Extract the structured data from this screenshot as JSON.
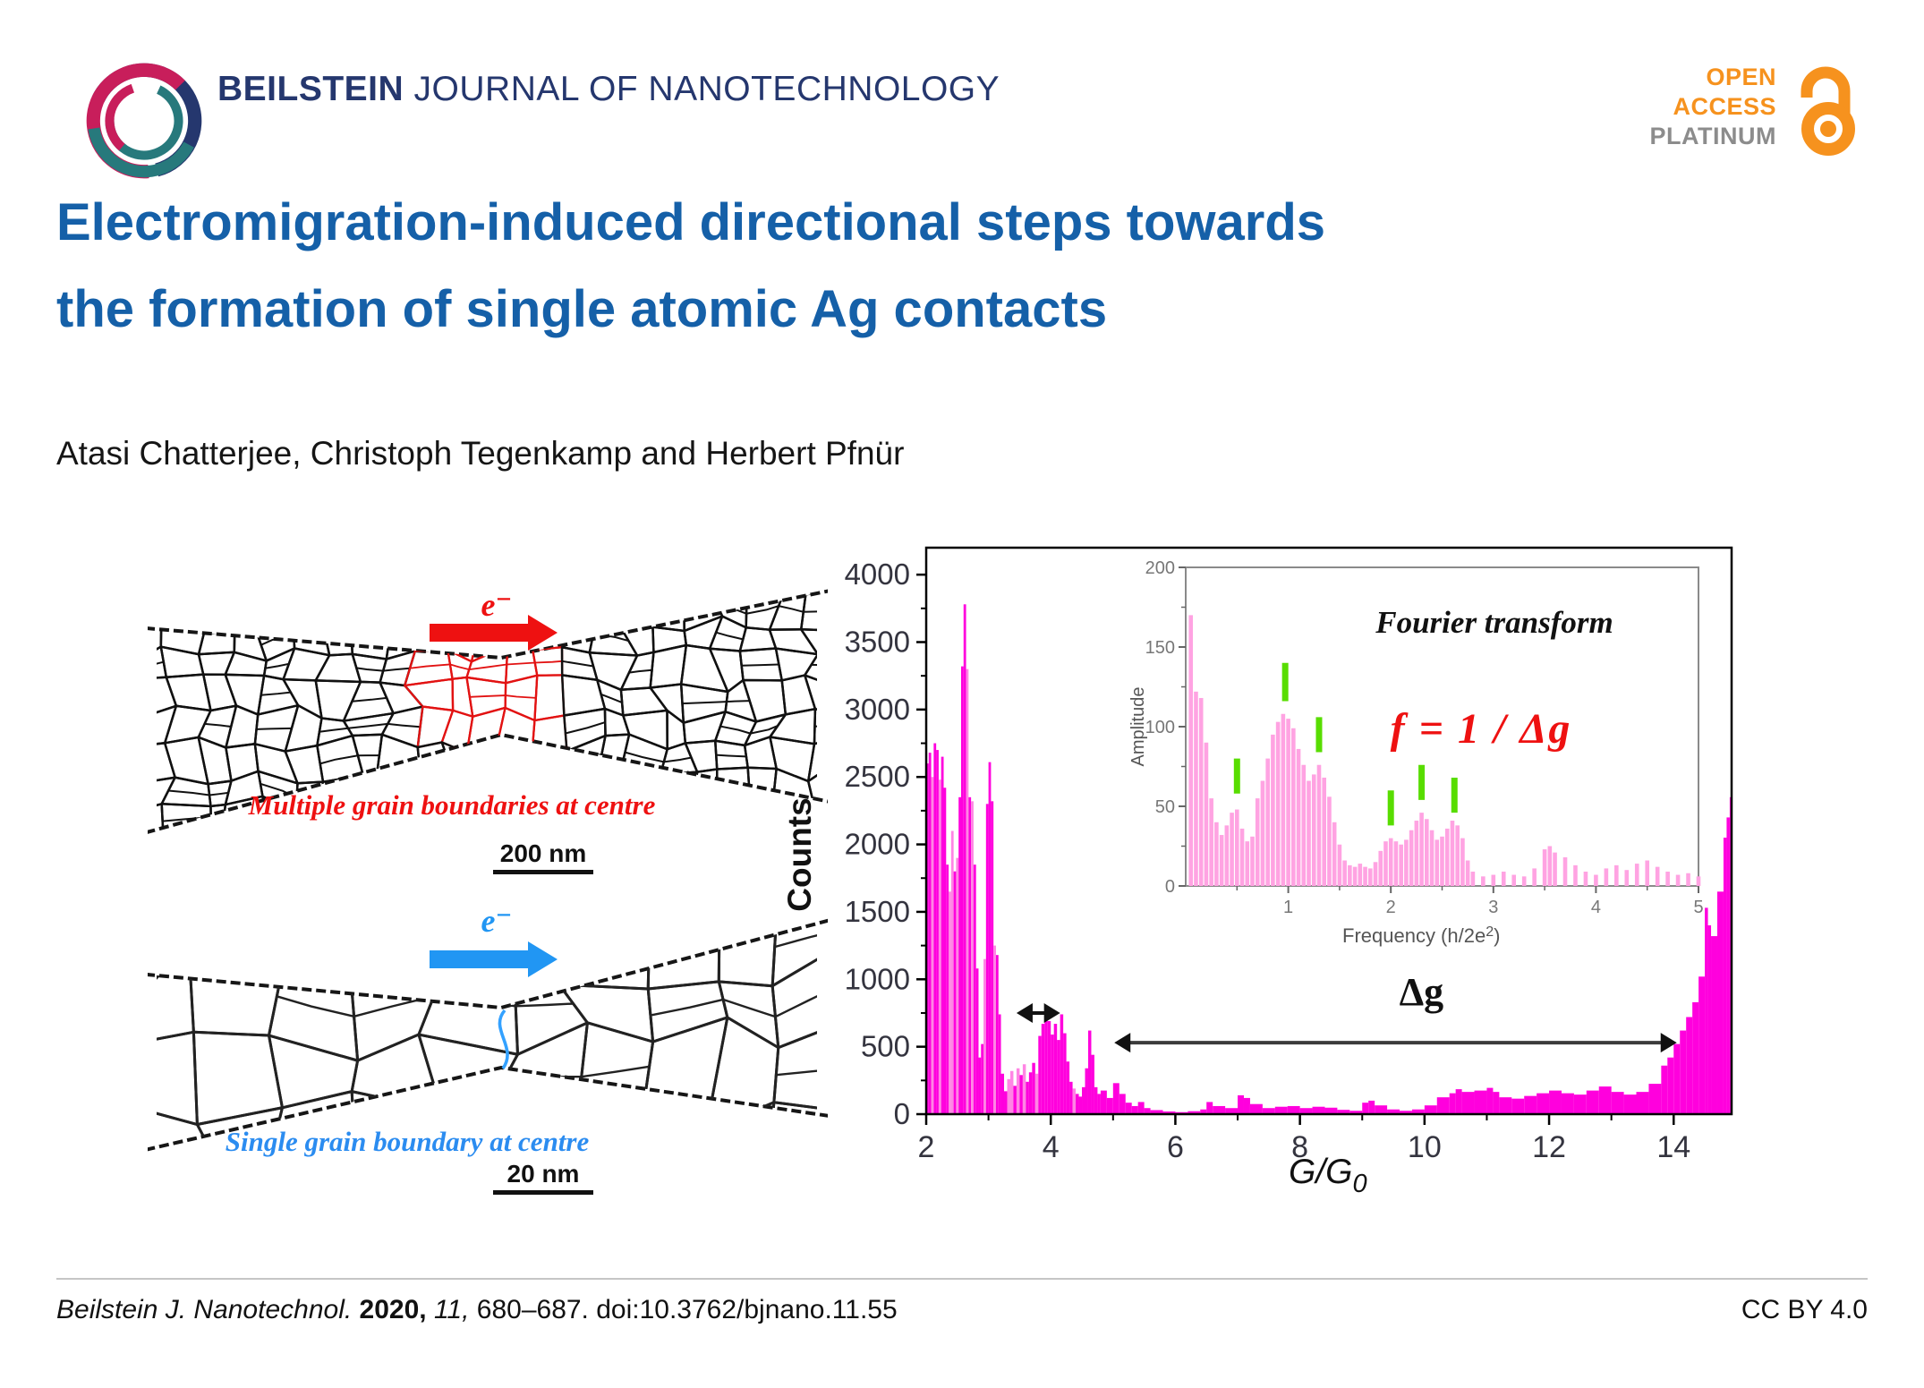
{
  "colors": {
    "navy": "#25376e",
    "swirl_teal": "#27797c",
    "swirl_crimson": "#c81e5b",
    "title_blue": "#1560a8",
    "accent_orange": "#f6921e",
    "badge_gray": "#8c8c8c",
    "red": "#ee1111",
    "blue_arrow": "#2196f3",
    "bar_magenta": "#ff00dd",
    "bar_light": "#ff85e4",
    "inset_pink": "#ffa3e2",
    "green": "#58dd00"
  },
  "header": {
    "journal_bold": "BEILSTEIN",
    "journal_rest": " JOURNAL OF NANOTECHNOLOGY",
    "badge": {
      "line1": "OPEN",
      "line2": "ACCESS",
      "line3": "PLATINUM"
    }
  },
  "title": {
    "line1": "Electromigration-induced directional steps towards",
    "line2": "the formation of single atomic Ag contacts"
  },
  "authors": "Atasi Chatterjee, Christoph Tegenkamp and Herbert Pfnür",
  "figure": {
    "top_schematic": {
      "electron_label": "e⁻",
      "caption": "Multiple grain boundaries at centre",
      "scale_label": "200 nm"
    },
    "bottom_schematic": {
      "electron_label": "e⁻",
      "caption": "Single grain boundary at centre",
      "scale_label": "20 nm"
    }
  },
  "chart_data": [
    {
      "type": "bar",
      "title": "Conductance histogram",
      "xlabel": {
        "text": "G/G",
        "sub": "0"
      },
      "ylabel": "Counts",
      "xlim": [
        2,
        14.93
      ],
      "ylim": [
        0,
        4200
      ],
      "xticks": [
        2,
        4,
        6,
        8,
        10,
        12,
        14
      ],
      "xticks_minor": [
        3,
        5,
        7,
        9,
        11,
        13
      ],
      "yticks": [
        0,
        500,
        1000,
        1500,
        2000,
        2500,
        3000,
        3500,
        4000
      ],
      "yticks_minor": [
        250,
        750,
        1250,
        1750,
        2250,
        2750,
        3250,
        3750
      ],
      "grid": false,
      "legend": "none",
      "points": [
        [
          2.0,
          2600,
          0
        ],
        [
          2.04,
          2680,
          0
        ],
        [
          2.08,
          2500,
          1
        ],
        [
          2.12,
          2750,
          0
        ],
        [
          2.16,
          2700,
          0
        ],
        [
          2.2,
          2480,
          1
        ],
        [
          2.24,
          2650,
          0
        ],
        [
          2.28,
          2420,
          0
        ],
        [
          2.32,
          1850,
          0
        ],
        [
          2.36,
          1650,
          1
        ],
        [
          2.4,
          2100,
          1
        ],
        [
          2.44,
          1800,
          0
        ],
        [
          2.48,
          1900,
          1
        ],
        [
          2.52,
          2350,
          0
        ],
        [
          2.56,
          3320,
          0
        ],
        [
          2.6,
          3780,
          0
        ],
        [
          2.64,
          3300,
          1
        ],
        [
          2.68,
          2350,
          0
        ],
        [
          2.72,
          2320,
          1
        ],
        [
          2.76,
          1850,
          0
        ],
        [
          2.8,
          1080,
          0
        ],
        [
          2.84,
          420,
          0
        ],
        [
          2.88,
          520,
          0
        ],
        [
          2.92,
          1150,
          1
        ],
        [
          2.96,
          2300,
          0
        ],
        [
          3.0,
          2610,
          0
        ],
        [
          3.04,
          2320,
          0
        ],
        [
          3.08,
          1250,
          1
        ],
        [
          3.12,
          1180,
          0
        ],
        [
          3.16,
          740,
          0
        ],
        [
          3.2,
          300,
          0
        ],
        [
          3.25,
          170,
          0
        ],
        [
          3.3,
          260,
          1
        ],
        [
          3.35,
          320,
          1
        ],
        [
          3.4,
          210,
          0
        ],
        [
          3.45,
          340,
          1
        ],
        [
          3.5,
          290,
          0
        ],
        [
          3.55,
          370,
          1
        ],
        [
          3.6,
          240,
          0
        ],
        [
          3.65,
          310,
          0
        ],
        [
          3.7,
          380,
          0
        ],
        [
          3.75,
          300,
          1
        ],
        [
          3.8,
          580,
          0
        ],
        [
          3.85,
          670,
          0
        ],
        [
          3.9,
          750,
          0
        ],
        [
          3.95,
          690,
          0
        ],
        [
          4.0,
          590,
          0
        ],
        [
          4.05,
          670,
          0
        ],
        [
          4.1,
          550,
          0
        ],
        [
          4.15,
          740,
          0
        ],
        [
          4.2,
          600,
          0
        ],
        [
          4.25,
          390,
          0
        ],
        [
          4.3,
          240,
          0
        ],
        [
          4.35,
          190,
          1
        ],
        [
          4.4,
          150,
          0
        ],
        [
          4.45,
          130,
          0
        ],
        [
          4.5,
          200,
          0
        ],
        [
          4.55,
          340,
          0
        ],
        [
          4.6,
          620,
          0
        ],
        [
          4.65,
          440,
          0
        ],
        [
          4.7,
          200,
          0
        ],
        [
          4.75,
          150,
          0
        ],
        [
          4.8,
          175,
          0
        ],
        [
          4.9,
          120,
          0
        ],
        [
          5.0,
          230,
          0
        ],
        [
          5.1,
          150,
          0
        ],
        [
          5.2,
          85,
          0
        ],
        [
          5.3,
          60,
          0
        ],
        [
          5.4,
          90,
          0
        ],
        [
          5.5,
          45,
          0
        ],
        [
          5.6,
          30,
          0
        ],
        [
          5.8,
          20,
          0
        ],
        [
          6.0,
          15,
          0
        ],
        [
          6.2,
          22,
          0
        ],
        [
          6.4,
          35,
          0
        ],
        [
          6.5,
          90,
          0
        ],
        [
          6.6,
          60,
          0
        ],
        [
          6.8,
          45,
          0
        ],
        [
          7.0,
          140,
          0
        ],
        [
          7.1,
          120,
          0
        ],
        [
          7.2,
          75,
          0
        ],
        [
          7.4,
          45,
          0
        ],
        [
          7.6,
          55,
          0
        ],
        [
          7.8,
          60,
          0
        ],
        [
          8.0,
          45,
          0
        ],
        [
          8.2,
          55,
          0
        ],
        [
          8.4,
          48,
          0
        ],
        [
          8.6,
          32,
          0
        ],
        [
          8.8,
          25,
          0
        ],
        [
          9.0,
          85,
          0
        ],
        [
          9.1,
          100,
          0
        ],
        [
          9.2,
          65,
          0
        ],
        [
          9.4,
          35,
          0
        ],
        [
          9.6,
          25,
          0
        ],
        [
          9.8,
          35,
          0
        ],
        [
          10.0,
          65,
          0
        ],
        [
          10.2,
          125,
          0
        ],
        [
          10.4,
          155,
          0
        ],
        [
          10.5,
          185,
          0
        ],
        [
          10.6,
          165,
          0
        ],
        [
          10.8,
          175,
          0
        ],
        [
          11.0,
          195,
          0
        ],
        [
          11.1,
          165,
          0
        ],
        [
          11.2,
          125,
          0
        ],
        [
          11.4,
          115,
          0
        ],
        [
          11.6,
          135,
          0
        ],
        [
          11.8,
          155,
          0
        ],
        [
          12.0,
          175,
          0
        ],
        [
          12.2,
          155,
          0
        ],
        [
          12.4,
          145,
          0
        ],
        [
          12.6,
          175,
          0
        ],
        [
          12.8,
          205,
          0
        ],
        [
          13.0,
          165,
          0
        ],
        [
          13.2,
          145,
          0
        ],
        [
          13.4,
          165,
          0
        ],
        [
          13.6,
          225,
          0
        ],
        [
          13.8,
          360,
          0
        ],
        [
          13.9,
          420,
          0
        ],
        [
          14.0,
          520,
          0
        ],
        [
          14.1,
          620,
          0
        ],
        [
          14.2,
          720,
          0
        ],
        [
          14.3,
          830,
          0
        ],
        [
          14.4,
          1020,
          0
        ],
        [
          14.5,
          1530,
          0
        ],
        [
          14.55,
          1400,
          0
        ],
        [
          14.6,
          1320,
          0
        ],
        [
          14.7,
          1650,
          0
        ],
        [
          14.8,
          2050,
          0
        ],
        [
          14.85,
          2200,
          0
        ],
        [
          14.9,
          2350,
          0
        ]
      ],
      "annotations": {
        "gap_arrow": {
          "x1": 3.45,
          "x2": 4.15,
          "y": 750
        },
        "dg_arrow": {
          "x1": 5.02,
          "x2": 14.05,
          "y": 530
        },
        "dg_label": {
          "text": "Δg",
          "x": 9.95,
          "y": 810
        }
      }
    },
    {
      "type": "bar",
      "title": "Fourier transform",
      "formula": "f = 1 / Δg",
      "xlabel": {
        "text": "Frequency (h/2e",
        "sup": "2",
        "after": ")"
      },
      "ylabel": "Amplitude",
      "xlim": [
        0,
        5
      ],
      "ylim": [
        0,
        200
      ],
      "xticks": [
        1,
        2,
        3,
        4,
        5
      ],
      "xticks_minor": [
        0.5,
        1.5,
        2.5,
        3.5,
        4.5
      ],
      "yticks": [
        0,
        50,
        100,
        150,
        200
      ],
      "yticks_minor": [
        25,
        75,
        125,
        175
      ],
      "grid": false,
      "legend": "none",
      "points": [
        [
          0.05,
          170
        ],
        [
          0.1,
          122
        ],
        [
          0.15,
          118
        ],
        [
          0.2,
          90
        ],
        [
          0.25,
          55
        ],
        [
          0.3,
          40
        ],
        [
          0.35,
          32
        ],
        [
          0.4,
          38
        ],
        [
          0.45,
          46
        ],
        [
          0.5,
          48
        ],
        [
          0.55,
          36
        ],
        [
          0.6,
          28
        ],
        [
          0.65,
          31
        ],
        [
          0.7,
          55
        ],
        [
          0.75,
          66
        ],
        [
          0.8,
          80
        ],
        [
          0.85,
          95
        ],
        [
          0.9,
          103
        ],
        [
          0.95,
          108
        ],
        [
          1.0,
          105
        ],
        [
          1.05,
          99
        ],
        [
          1.1,
          86
        ],
        [
          1.15,
          76
        ],
        [
          1.2,
          66
        ],
        [
          1.25,
          70
        ],
        [
          1.3,
          76
        ],
        [
          1.35,
          68
        ],
        [
          1.4,
          56
        ],
        [
          1.45,
          40
        ],
        [
          1.5,
          26
        ],
        [
          1.55,
          16
        ],
        [
          1.6,
          13
        ],
        [
          1.65,
          12
        ],
        [
          1.7,
          14
        ],
        [
          1.75,
          12
        ],
        [
          1.8,
          11
        ],
        [
          1.85,
          15
        ],
        [
          1.9,
          22
        ],
        [
          1.95,
          28
        ],
        [
          2.0,
          30
        ],
        [
          2.05,
          28
        ],
        [
          2.1,
          26
        ],
        [
          2.15,
          29
        ],
        [
          2.2,
          35
        ],
        [
          2.25,
          41
        ],
        [
          2.3,
          46
        ],
        [
          2.35,
          42
        ],
        [
          2.4,
          35
        ],
        [
          2.45,
          29
        ],
        [
          2.5,
          31
        ],
        [
          2.55,
          36
        ],
        [
          2.6,
          41
        ],
        [
          2.65,
          38
        ],
        [
          2.7,
          30
        ],
        [
          2.75,
          16
        ],
        [
          2.8,
          9
        ],
        [
          2.9,
          6
        ],
        [
          3.0,
          7
        ],
        [
          3.1,
          9
        ],
        [
          3.2,
          7
        ],
        [
          3.3,
          6
        ],
        [
          3.4,
          11
        ],
        [
          3.5,
          23
        ],
        [
          3.55,
          25
        ],
        [
          3.6,
          21
        ],
        [
          3.7,
          18
        ],
        [
          3.8,
          13
        ],
        [
          3.9,
          9
        ],
        [
          4.0,
          7
        ],
        [
          4.1,
          11
        ],
        [
          4.2,
          13
        ],
        [
          4.3,
          10
        ],
        [
          4.4,
          14
        ],
        [
          4.5,
          16
        ],
        [
          4.6,
          12
        ],
        [
          4.7,
          9
        ],
        [
          4.8,
          7
        ],
        [
          4.9,
          8
        ],
        [
          5.0,
          6
        ]
      ],
      "green_markers": [
        [
          0.5,
          58,
          80
        ],
        [
          0.97,
          116,
          140
        ],
        [
          1.3,
          84,
          106
        ],
        [
          2.0,
          38,
          60
        ],
        [
          2.3,
          54,
          76
        ],
        [
          2.62,
          46,
          68
        ]
      ]
    }
  ],
  "footer": {
    "cite_journal": "Beilstein J. Nanotechnol.",
    "cite_year": " 2020, ",
    "cite_volume": "11, ",
    "cite_rest": "680–687. doi:10.3762/bjnano.11.55",
    "license": "CC BY 4.0"
  }
}
